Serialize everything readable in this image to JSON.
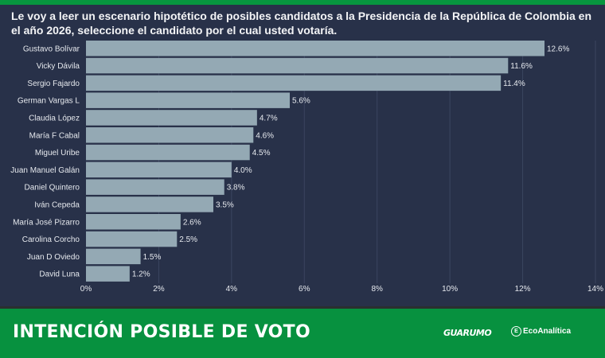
{
  "header": {
    "question": "Le voy a leer un escenario hipotético de posibles candidatos a la Presidencia de la República de Colombia en el año 2026, seleccione el candidato por el cual usted votaría."
  },
  "footer": {
    "title": "INTENCIÓN POSIBLE DE VOTO",
    "logo_guarumo": "GUARUMO",
    "logo_eco_icon": "E",
    "logo_eco": "EcoAnalítica"
  },
  "colors": {
    "background": "#283149",
    "bar": "#94a9b4",
    "grid": "#3b4560",
    "footer": "#07913f"
  },
  "chart_data": {
    "type": "bar",
    "orientation": "horizontal",
    "title": "Le voy a leer un escenario hipotético de posibles candidatos a la Presidencia de la República de Colombia en el año 2026, seleccione el candidato por el cual usted votaría.",
    "xlabel": "",
    "ylabel": "",
    "categories": [
      "Gustavo Bolívar",
      "Vicky Dávila",
      "Sergio Fajardo",
      "German Vargas L",
      "Claudia López",
      "María F Cabal",
      "Miguel Uribe",
      "Juan Manuel Galán",
      "Daniel Quintero",
      "Iván Cepeda",
      "María José Pizarro",
      "Carolina Corcho",
      "Juan D Oviedo",
      "David Luna"
    ],
    "values": [
      12.6,
      11.6,
      11.4,
      5.6,
      4.7,
      4.6,
      4.5,
      4.0,
      3.8,
      3.5,
      2.6,
      2.5,
      1.5,
      1.2
    ],
    "value_labels": [
      "12.6%",
      "11.6%",
      "11.4%",
      "5.6%",
      "4.7%",
      "4.6%",
      "4.5%",
      "4.0%",
      "3.8%",
      "3.5%",
      "2.6%",
      "2.5%",
      "1.5%",
      "1.2%"
    ],
    "xlim": [
      0,
      14
    ],
    "xticks": [
      0,
      2,
      4,
      6,
      8,
      10,
      12,
      14
    ],
    "xtick_labels": [
      "0%",
      "2%",
      "4%",
      "6%",
      "8%",
      "10%",
      "12%",
      "14%"
    ],
    "grid": true,
    "legend": "none"
  }
}
